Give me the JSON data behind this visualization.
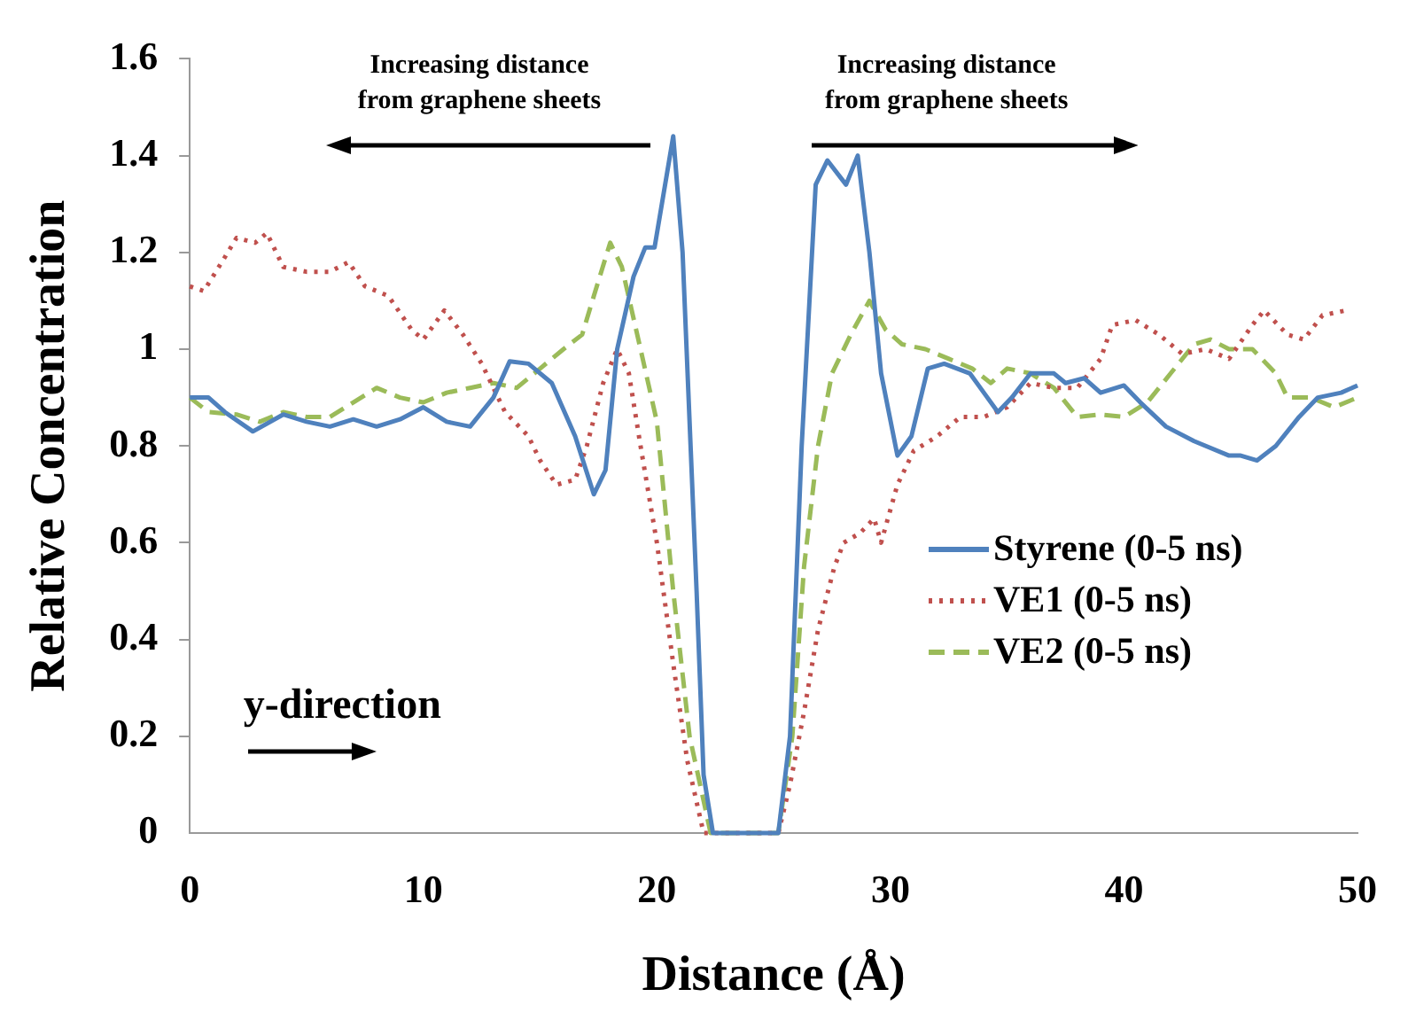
{
  "chart_data": {
    "type": "line",
    "xlabel": "Distance (Å)",
    "ylabel": "Relative Concentration",
    "xlim": [
      0,
      50
    ],
    "xticks": [
      0,
      10,
      20,
      30,
      40,
      50
    ],
    "ylim": [
      0,
      1.6
    ],
    "yticks": [
      0,
      0.2,
      0.4,
      0.6,
      0.8,
      1,
      1.2,
      1.4,
      1.6
    ],
    "grid": false,
    "legend": "right",
    "marker": "none",
    "annotations": [
      "Increasing distance from graphene sheets",
      "Increasing distance from graphene sheets",
      "y-direction"
    ],
    "series": [
      {
        "name": "Styrene (0-5 ns)",
        "color": "#4f81bd",
        "line_style": "solid",
        "x": [
          0,
          0.8,
          1.5,
          2.7,
          4,
          5,
          6,
          7,
          8,
          9,
          10,
          11,
          12,
          13,
          13.7,
          14.5,
          15.5,
          16.5,
          17.3,
          17.8,
          18.3,
          19,
          19.5,
          19.9,
          20.7,
          21.1,
          21.7,
          22,
          22.4,
          25.2,
          25.7,
          26.2,
          26.8,
          27.3,
          28.1,
          28.6,
          29.1,
          29.6,
          30.3,
          30.9,
          31.6,
          32.3,
          33.4,
          34,
          34.6,
          35.2,
          36,
          37,
          37.5,
          38.3,
          39,
          40,
          40.7,
          41.8,
          43,
          44.5,
          45,
          45.7,
          46.5,
          47.5,
          48.3,
          49.3,
          50
        ],
        "values": [
          0.9,
          0.9,
          0.87,
          0.83,
          0.865,
          0.85,
          0.84,
          0.855,
          0.84,
          0.855,
          0.88,
          0.85,
          0.84,
          0.9,
          0.975,
          0.97,
          0.93,
          0.82,
          0.7,
          0.75,
          1.0,
          1.15,
          1.21,
          1.21,
          1.44,
          1.2,
          0.5,
          0.12,
          0,
          0,
          0.2,
          0.8,
          1.34,
          1.39,
          1.34,
          1.4,
          1.2,
          0.95,
          0.78,
          0.82,
          0.96,
          0.97,
          0.95,
          0.91,
          0.87,
          0.9,
          0.95,
          0.95,
          0.93,
          0.94,
          0.91,
          0.925,
          0.89,
          0.84,
          0.81,
          0.78,
          0.78,
          0.77,
          0.8,
          0.86,
          0.9,
          0.91,
          0.925
        ]
      },
      {
        "name": "VE1 (0-5 ns)",
        "color": "#c0504d",
        "line_style": "dotted",
        "x": [
          0,
          0.6,
          1.5,
          2,
          2.8,
          3.3,
          4,
          5,
          6,
          6.8,
          7.5,
          8.5,
          9.5,
          10,
          10.9,
          11.7,
          12.5,
          13.5,
          14.5,
          15,
          15.7,
          16.5,
          17,
          17.7,
          18.3,
          18.8,
          19.3,
          20,
          20.7,
          21.3,
          22,
          25.2,
          25.7,
          26.3,
          26.9,
          27.6,
          28,
          28.7,
          29.3,
          29.6,
          30.3,
          31,
          32,
          33,
          34,
          35,
          36,
          37,
          38,
          39,
          39.5,
          40.5,
          41.5,
          42.5,
          43.5,
          44.5,
          45.5,
          46,
          47,
          47.7,
          48.5,
          49.5
        ],
        "values": [
          1.13,
          1.12,
          1.19,
          1.23,
          1.22,
          1.24,
          1.17,
          1.16,
          1.16,
          1.18,
          1.13,
          1.11,
          1.04,
          1.02,
          1.08,
          1.03,
          0.97,
          0.87,
          0.82,
          0.77,
          0.72,
          0.73,
          0.8,
          0.93,
          1.0,
          0.95,
          0.8,
          0.6,
          0.35,
          0.15,
          0,
          0,
          0.1,
          0.25,
          0.42,
          0.55,
          0.6,
          0.62,
          0.65,
          0.6,
          0.72,
          0.79,
          0.82,
          0.86,
          0.86,
          0.88,
          0.93,
          0.92,
          0.92,
          0.98,
          1.05,
          1.06,
          1.03,
          0.99,
          1.0,
          0.98,
          1.05,
          1.08,
          1.03,
          1.02,
          1.07,
          1.08
        ]
      },
      {
        "name": "VE2 (0-5 ns)",
        "color": "#9bbb59",
        "line_style": "dashed",
        "x": [
          0,
          0.8,
          2,
          3,
          4,
          5,
          6,
          7,
          8,
          9,
          10,
          11,
          12,
          13,
          14,
          15,
          16,
          16.8,
          17.3,
          18,
          18.5,
          19.3,
          20,
          20.7,
          21.4,
          22.3,
          25.2,
          25.8,
          26.3,
          26.9,
          27.5,
          28.3,
          29.1,
          29.8,
          30.5,
          31.5,
          32.5,
          33.5,
          34.3,
          35,
          36,
          37,
          38,
          39,
          40,
          41,
          42,
          43,
          43.7,
          44.5,
          45.5,
          46.5,
          47,
          48,
          49,
          50
        ],
        "values": [
          0.9,
          0.87,
          0.865,
          0.85,
          0.87,
          0.86,
          0.86,
          0.89,
          0.92,
          0.9,
          0.89,
          0.91,
          0.92,
          0.93,
          0.92,
          0.96,
          1.0,
          1.03,
          1.11,
          1.22,
          1.17,
          1.0,
          0.85,
          0.5,
          0.2,
          0,
          0,
          0.2,
          0.55,
          0.8,
          0.95,
          1.03,
          1.1,
          1.04,
          1.01,
          1.0,
          0.98,
          0.96,
          0.93,
          0.96,
          0.95,
          0.92,
          0.86,
          0.865,
          0.86,
          0.89,
          0.95,
          1.01,
          1.02,
          1.0,
          1.0,
          0.95,
          0.9,
          0.9,
          0.88,
          0.9
        ]
      }
    ]
  }
}
